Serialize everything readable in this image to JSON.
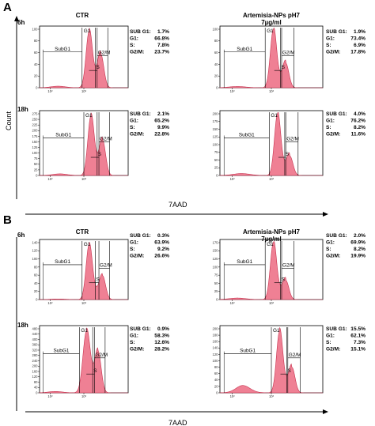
{
  "figure": {
    "panel_a_letter": "A",
    "panel_b_letter": "B",
    "y_axis_label": "Count",
    "x_axis_label": "7AAD"
  },
  "colors": {
    "histogram_fill": "#ef8094",
    "histogram_stroke": "#c8324f",
    "axis": "#000000",
    "gate": "#000000"
  },
  "chart_data": [
    {
      "type": "area",
      "panel": "A",
      "row": "6h",
      "condition": "CTR",
      "title": "CTR",
      "time_label": "6h",
      "stats": [
        [
          "SUB G1:",
          "1.7%"
        ],
        [
          "G1:",
          "66.8%"
        ],
        [
          "S:",
          "7.8%"
        ],
        [
          "G2/M:",
          "23.7%"
        ]
      ],
      "gates": [
        "SubG1",
        "G1",
        "S",
        "G2/M"
      ],
      "x_ticks": [
        "10²",
        "10³"
      ],
      "y_ticks": [
        "0",
        "20",
        "40",
        "60",
        "80",
        "100"
      ]
    },
    {
      "type": "area",
      "panel": "A",
      "row": "6h",
      "condition": "Artemisia-NPs pH7 7µg/ml",
      "title_line1": "Artemisia-NPs  pH7",
      "title_line2": "7µg/ml",
      "stats": [
        [
          "SUB G1:",
          "1.9%"
        ],
        [
          "G1:",
          "73.4%"
        ],
        [
          "S:",
          "6.9%"
        ],
        [
          "G2/M:",
          "17.8%"
        ]
      ],
      "gates": [
        "SubG1",
        "G1",
        "S",
        "G2/M"
      ],
      "x_ticks": [
        "10²",
        "10³"
      ],
      "y_ticks": [
        "0",
        "20",
        "40",
        "60",
        "80",
        "100"
      ]
    },
    {
      "type": "area",
      "panel": "A",
      "row": "18h",
      "condition": "CTR",
      "time_label": "18h",
      "stats": [
        [
          "SUB G1:",
          "2.1%"
        ],
        [
          "G1:",
          "65.2%"
        ],
        [
          "S:",
          "9.9%"
        ],
        [
          "G2/M:",
          "22.8%"
        ]
      ],
      "gates": [
        "SubG1",
        "G1",
        "S",
        "G2/M"
      ],
      "x_ticks": [
        "10²",
        "10³"
      ],
      "y_ticks": [
        "0",
        "25",
        "50",
        "75",
        "100",
        "125",
        "150",
        "175",
        "200",
        "225",
        "250",
        "275"
      ]
    },
    {
      "type": "area",
      "panel": "A",
      "row": "18h",
      "condition": "Artemisia-NPs pH7 7µg/ml",
      "stats": [
        [
          "SUB G1:",
          "4.0%"
        ],
        [
          "G1:",
          "76.2%"
        ],
        [
          "S:",
          "8.2%"
        ],
        [
          "G2/M:",
          "11.6%"
        ]
      ],
      "gates": [
        "SubG1",
        "G1",
        "S",
        "G2/M"
      ],
      "x_ticks": [
        "10²",
        "10³"
      ],
      "y_ticks": [
        "0",
        "25",
        "50",
        "75",
        "100",
        "125",
        "150",
        "175",
        "200"
      ]
    },
    {
      "type": "area",
      "panel": "B",
      "row": "6h",
      "condition": "CTR",
      "title": "CTR",
      "time_label": "6h",
      "stats": [
        [
          "SUB G1:",
          "0.3%"
        ],
        [
          "G1:",
          "63.9%"
        ],
        [
          "S:",
          "9.2%"
        ],
        [
          "G2/M:",
          "26.6%"
        ]
      ],
      "gates": [
        "SubG1",
        "G1",
        "S",
        "G2/M"
      ],
      "x_ticks": [
        "10²",
        "10³"
      ],
      "y_ticks": [
        "0",
        "20",
        "40",
        "60",
        "80",
        "100",
        "120",
        "140"
      ]
    },
    {
      "type": "area",
      "panel": "B",
      "row": "6h",
      "condition": "Artemisia-NPs pH7 7µg/ml",
      "title_line1": "Artemisia-NPs  pH7",
      "title_line2": "7µg/ml",
      "stats": [
        [
          "SUB G1:",
          "2.0%"
        ],
        [
          "G1:",
          "69.9%"
        ],
        [
          "S:",
          "8.2%"
        ],
        [
          "G2/M:",
          "19.9%"
        ]
      ],
      "gates": [
        "SubG1",
        "G1",
        "S",
        "G2/M"
      ],
      "x_ticks": [
        "10²",
        "10³"
      ],
      "y_ticks": [
        "0",
        "25",
        "50",
        "75",
        "100",
        "125",
        "150",
        "175"
      ]
    },
    {
      "type": "area",
      "panel": "B",
      "row": "18h",
      "condition": "CTR",
      "time_label": "18h",
      "stats": [
        [
          "SUB G1:",
          "0.9%"
        ],
        [
          "G1:",
          "58.3%"
        ],
        [
          "S:",
          "12.6%"
        ],
        [
          "G2/M:",
          "28.2%"
        ]
      ],
      "gates": [
        "SubG1",
        "G1",
        "S",
        "G2/M"
      ],
      "x_ticks": [
        "10²",
        "10³"
      ],
      "y_ticks": [
        "0",
        "40",
        "80",
        "120",
        "160",
        "200",
        "240",
        "280",
        "320",
        "360",
        "400",
        "440",
        "480"
      ]
    },
    {
      "type": "area",
      "panel": "B",
      "row": "18h",
      "condition": "Artemisia-NPs pH7 7µg/ml",
      "stats": [
        [
          "SUB G1:",
          "15.5%"
        ],
        [
          "G1:",
          "62.1%"
        ],
        [
          "S:",
          "7.3%"
        ],
        [
          "G2/M:",
          "15.1%"
        ]
      ],
      "gates": [
        "SubG1",
        "G1",
        "S",
        "G2/M"
      ],
      "x_ticks": [
        "10²",
        "10³"
      ],
      "y_ticks": [
        "0",
        "20",
        "40",
        "60",
        "80",
        "100",
        "120",
        "140",
        "160",
        "180",
        "200"
      ]
    }
  ]
}
